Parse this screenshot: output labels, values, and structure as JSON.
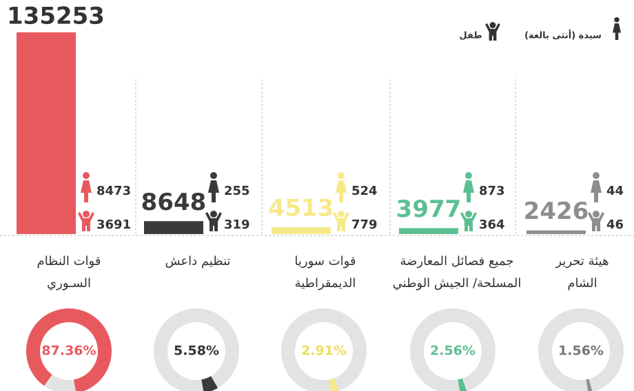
{
  "chart_data": {
    "type": "bar",
    "legend": {
      "women": "سيدة (أنثى بالغة)",
      "children": "طفل"
    },
    "categories": [
      [
        "قوات النظام",
        "السـوري"
      ],
      [
        "تنظيم داعش"
      ],
      [
        "قوات سوريا",
        "الديمقراطية"
      ],
      [
        "جميع فصائل المعارضة",
        "المسلحة/ الجيش الوطني"
      ],
      [
        "هيئة تحرير",
        "الشام"
      ]
    ],
    "values": [
      135253,
      8648,
      4513,
      3977,
      2426
    ],
    "women": [
      8473,
      255,
      524,
      873,
      44
    ],
    "children": [
      3691,
      319,
      779,
      364,
      46
    ],
    "percent": [
      87.36,
      5.58,
      2.91,
      2.56,
      1.56
    ],
    "percent_labels": [
      "87.36%",
      "5.58%",
      "2.91%",
      "2.56%",
      "1.56%"
    ],
    "colors": [
      "#e8595e",
      "#3a3a3c",
      "#f7e98a",
      "#5cbf92",
      "#8e8e8e"
    ]
  }
}
